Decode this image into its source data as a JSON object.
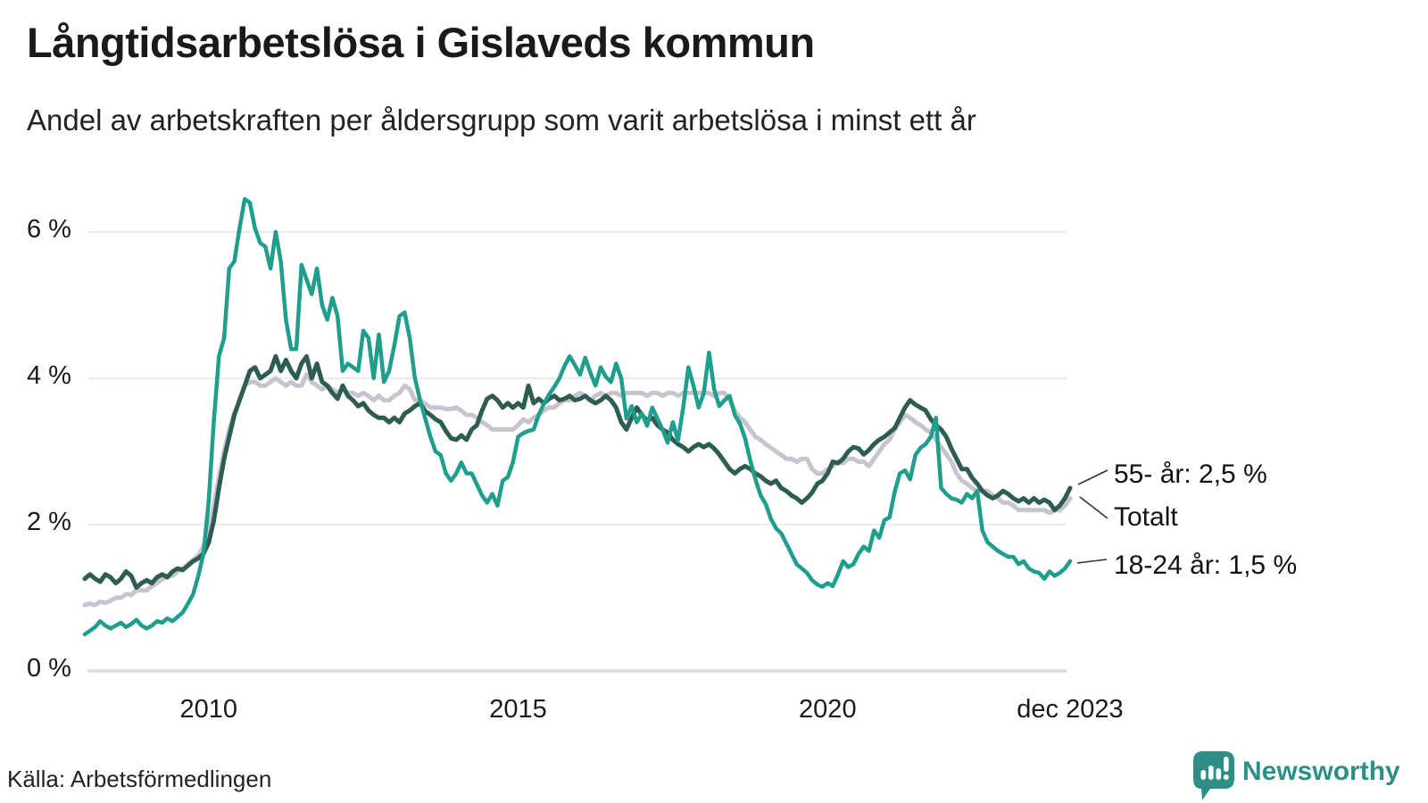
{
  "header": {
    "title": "Långtidsarbetslösa i Gislaveds kommun",
    "subtitle": "Andel av arbetskraften per åldersgrupp som varit arbetslösa i minst ett år"
  },
  "chart_data": {
    "type": "line",
    "title": "Långtidsarbetslösa i Gislaveds kommun",
    "subtitle": "Andel av arbetskraften per åldersgrupp som varit arbetslösa i minst ett år",
    "x_unit": "month",
    "x_start": "2008-01",
    "x_end": "2023-12",
    "ylim": [
      0,
      6.8
    ],
    "grid": true,
    "y_ticks": [
      0,
      2,
      4,
      6
    ],
    "y_tick_labels": [
      "0 %",
      "2 %",
      "4 %",
      "6 %"
    ],
    "x_ticks": [
      {
        "month_index": 24,
        "label": "2010"
      },
      {
        "month_index": 84,
        "label": "2015"
      },
      {
        "month_index": 144,
        "label": "2020"
      },
      {
        "month_index": 191,
        "label": "dec 2023"
      }
    ],
    "series": [
      {
        "name": "Totalt",
        "color": "#c7c4d0",
        "width": 5,
        "values": [
          0.9,
          0.92,
          0.9,
          0.95,
          0.93,
          0.96,
          1.0,
          1.0,
          1.05,
          1.04,
          1.1,
          1.1,
          1.1,
          1.16,
          1.2,
          1.25,
          1.3,
          1.3,
          1.36,
          1.4,
          1.46,
          1.52,
          1.58,
          1.7,
          1.9,
          2.25,
          2.65,
          3.0,
          3.3,
          3.52,
          3.7,
          3.9,
          3.95,
          3.95,
          3.9,
          3.9,
          3.95,
          4.0,
          3.95,
          3.9,
          3.95,
          3.9,
          3.9,
          4.05,
          3.95,
          3.9,
          3.85,
          3.9,
          3.85,
          3.8,
          3.85,
          3.8,
          3.8,
          3.76,
          3.8,
          3.76,
          3.7,
          3.76,
          3.7,
          3.7,
          3.76,
          3.8,
          3.9,
          3.85,
          3.7,
          3.7,
          3.65,
          3.6,
          3.6,
          3.6,
          3.58,
          3.58,
          3.6,
          3.56,
          3.5,
          3.5,
          3.46,
          3.4,
          3.36,
          3.3,
          3.3,
          3.3,
          3.3,
          3.3,
          3.36,
          3.44,
          3.4,
          3.46,
          3.5,
          3.56,
          3.6,
          3.6,
          3.66,
          3.7,
          3.7,
          3.76,
          3.8,
          3.76,
          3.7,
          3.76,
          3.8,
          3.76,
          3.8,
          3.8,
          3.76,
          3.8,
          3.8,
          3.8,
          3.8,
          3.76,
          3.8,
          3.8,
          3.76,
          3.8,
          3.8,
          3.76,
          3.8,
          3.8,
          3.8,
          3.8,
          3.8,
          3.8,
          3.76,
          3.8,
          3.8,
          3.7,
          3.56,
          3.46,
          3.4,
          3.3,
          3.2,
          3.16,
          3.1,
          3.05,
          3.0,
          2.95,
          2.9,
          2.9,
          2.86,
          2.9,
          2.9,
          2.76,
          2.7,
          2.7,
          2.76,
          2.8,
          2.86,
          2.84,
          2.9,
          2.9,
          2.86,
          2.86,
          2.8,
          2.9,
          3.0,
          3.1,
          3.16,
          3.3,
          3.4,
          3.5,
          3.46,
          3.4,
          3.36,
          3.3,
          3.26,
          3.16,
          3.06,
          2.96,
          2.86,
          2.7,
          2.6,
          2.56,
          2.5,
          2.46,
          2.46,
          2.46,
          2.4,
          2.36,
          2.3,
          2.3,
          2.26,
          2.2,
          2.2,
          2.2,
          2.2,
          2.2,
          2.2,
          2.16,
          2.2,
          2.2,
          2.26,
          2.36
        ]
      },
      {
        "name": "55- år",
        "color": "#2d5c52",
        "width": 5,
        "values": [
          1.26,
          1.32,
          1.26,
          1.22,
          1.32,
          1.28,
          1.2,
          1.26,
          1.36,
          1.3,
          1.14,
          1.2,
          1.24,
          1.2,
          1.28,
          1.32,
          1.28,
          1.36,
          1.4,
          1.38,
          1.44,
          1.5,
          1.54,
          1.6,
          1.75,
          2.05,
          2.5,
          2.9,
          3.2,
          3.5,
          3.7,
          3.9,
          4.1,
          4.15,
          4.0,
          4.05,
          4.1,
          4.3,
          4.1,
          4.25,
          4.1,
          4.0,
          4.2,
          4.3,
          4.0,
          4.2,
          3.95,
          3.9,
          3.8,
          3.72,
          3.9,
          3.76,
          3.7,
          3.62,
          3.66,
          3.56,
          3.5,
          3.46,
          3.46,
          3.4,
          3.46,
          3.4,
          3.52,
          3.56,
          3.62,
          3.66,
          3.55,
          3.5,
          3.44,
          3.4,
          3.28,
          3.18,
          3.16,
          3.22,
          3.16,
          3.3,
          3.36,
          3.56,
          3.72,
          3.76,
          3.7,
          3.6,
          3.66,
          3.6,
          3.66,
          3.6,
          3.9,
          3.66,
          3.72,
          3.66,
          3.72,
          3.76,
          3.7,
          3.72,
          3.76,
          3.7,
          3.72,
          3.76,
          3.7,
          3.66,
          3.7,
          3.76,
          3.7,
          3.6,
          3.4,
          3.3,
          3.46,
          3.6,
          3.5,
          3.42,
          3.46,
          3.36,
          3.3,
          3.26,
          3.16,
          3.1,
          3.06,
          3.0,
          3.06,
          3.1,
          3.06,
          3.1,
          3.04,
          2.96,
          2.86,
          2.76,
          2.7,
          2.76,
          2.8,
          2.76,
          2.7,
          2.66,
          2.6,
          2.56,
          2.6,
          2.5,
          2.46,
          2.4,
          2.36,
          2.3,
          2.36,
          2.44,
          2.56,
          2.6,
          2.7,
          2.86,
          2.84,
          2.9,
          3.0,
          3.06,
          3.04,
          2.96,
          3.02,
          3.1,
          3.16,
          3.2,
          3.26,
          3.32,
          3.46,
          3.6,
          3.7,
          3.64,
          3.6,
          3.56,
          3.44,
          3.36,
          3.3,
          3.2,
          3.04,
          2.9,
          2.76,
          2.76,
          2.64,
          2.56,
          2.46,
          2.4,
          2.36,
          2.4,
          2.46,
          2.42,
          2.36,
          2.32,
          2.36,
          2.3,
          2.36,
          2.3,
          2.34,
          2.3,
          2.2,
          2.26,
          2.36,
          2.5
        ]
      },
      {
        "name": "18-24 år",
        "color": "#1f9e8e",
        "width": 4.5,
        "values": [
          0.5,
          0.55,
          0.6,
          0.68,
          0.62,
          0.58,
          0.62,
          0.66,
          0.6,
          0.64,
          0.7,
          0.62,
          0.58,
          0.62,
          0.68,
          0.66,
          0.72,
          0.68,
          0.74,
          0.8,
          0.92,
          1.05,
          1.3,
          1.6,
          2.3,
          3.4,
          4.3,
          4.55,
          5.5,
          5.6,
          6.05,
          6.45,
          6.4,
          6.05,
          5.85,
          5.8,
          5.5,
          6.0,
          5.6,
          4.8,
          4.4,
          4.4,
          5.55,
          5.35,
          5.15,
          5.5,
          5.0,
          4.8,
          5.1,
          4.85,
          4.1,
          4.2,
          4.15,
          4.1,
          4.65,
          4.55,
          4.0,
          4.6,
          3.95,
          4.1,
          4.45,
          4.85,
          4.9,
          4.55,
          4.0,
          3.7,
          3.45,
          3.2,
          3.0,
          2.95,
          2.7,
          2.6,
          2.7,
          2.85,
          2.7,
          2.7,
          2.55,
          2.4,
          2.3,
          2.42,
          2.26,
          2.6,
          2.65,
          2.85,
          3.2,
          3.25,
          3.28,
          3.3,
          3.5,
          3.65,
          3.78,
          3.88,
          4.0,
          4.17,
          4.3,
          4.18,
          4.05,
          4.28,
          4.08,
          3.9,
          4.15,
          4.02,
          3.95,
          4.2,
          4.0,
          3.45,
          3.62,
          3.4,
          3.52,
          3.35,
          3.6,
          3.45,
          3.3,
          3.12,
          3.4,
          3.15,
          3.6,
          4.15,
          3.9,
          3.6,
          3.8,
          4.35,
          3.85,
          3.62,
          3.7,
          3.76,
          3.5,
          3.38,
          3.18,
          2.88,
          2.62,
          2.4,
          2.28,
          2.08,
          1.95,
          1.88,
          1.74,
          1.6,
          1.46,
          1.4,
          1.34,
          1.24,
          1.18,
          1.15,
          1.2,
          1.16,
          1.32,
          1.5,
          1.42,
          1.46,
          1.6,
          1.7,
          1.64,
          1.92,
          1.82,
          2.06,
          2.1,
          2.45,
          2.7,
          2.74,
          2.62,
          2.95,
          3.05,
          3.1,
          3.2,
          3.46,
          2.5,
          2.42,
          2.36,
          2.34,
          2.3,
          2.42,
          2.36,
          2.46,
          1.92,
          1.76,
          1.7,
          1.64,
          1.6,
          1.56,
          1.56,
          1.46,
          1.5,
          1.4,
          1.36,
          1.34,
          1.26,
          1.36,
          1.3,
          1.34,
          1.4,
          1.5
        ]
      }
    ],
    "annotations": [
      {
        "label": "55- år: 2,5 %"
      },
      {
        "label": "Totalt"
      },
      {
        "label": "18-24 år: 1,5 %"
      }
    ],
    "legend_position": "right-end-labels"
  },
  "footer": {
    "source": "Källa: Arbetsförmedlingen",
    "brand": "Newsworthy"
  },
  "colors": {
    "series_18_24": "#1f9e8e",
    "series_55": "#2d5c52",
    "series_total": "#c7c4d0",
    "gridline": "#ebebee",
    "gridline_zero": "#dcdcdf",
    "brand_teal": "#2f8e85",
    "text": "#1a1a1a"
  }
}
